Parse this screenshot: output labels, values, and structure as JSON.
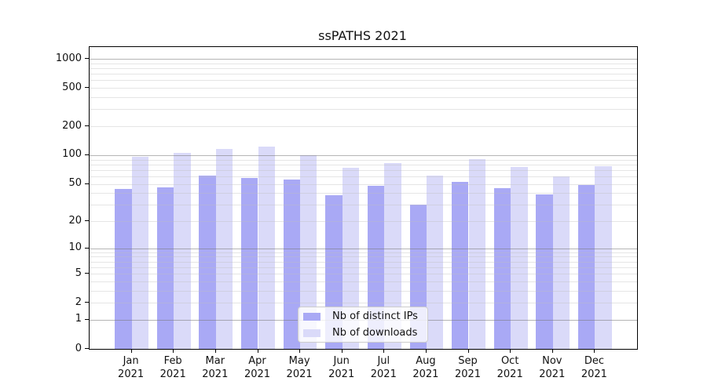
{
  "chart_data": {
    "type": "bar",
    "title": "ssPATHS 2021",
    "categories": [
      "Jan\n2021",
      "Feb\n2021",
      "Mar\n2021",
      "Apr\n2021",
      "May\n2021",
      "Jun\n2021",
      "Jul\n2021",
      "Aug\n2021",
      "Sep\n2021",
      "Oct\n2021",
      "Nov\n2021",
      "Dec\n2021"
    ],
    "series": [
      {
        "name": "Nb of distinct IPs",
        "color": "#a9a9f5",
        "values": [
          44,
          46,
          61,
          58,
          56,
          38,
          48,
          30,
          52,
          45,
          39,
          49
        ]
      },
      {
        "name": "Nb of downloads",
        "color": "#dadaf9",
        "values": [
          97,
          105,
          116,
          123,
          100,
          74,
          82,
          61,
          91,
          75,
          60,
          77
        ]
      }
    ],
    "xlabel": "",
    "ylabel": "",
    "y_axis": {
      "scale": "log1p",
      "tick_values": [
        0,
        1,
        2,
        5,
        10,
        20,
        50,
        100,
        200,
        500,
        1000
      ],
      "tick_labels": [
        "0",
        "1",
        "2",
        "5",
        "10",
        "20",
        "50",
        "100",
        "200",
        "500",
        "1000"
      ],
      "top_value": 1350
    },
    "grid": {
      "major_color": "#8c8c8c",
      "minor_color": "#dcdcdc"
    },
    "legend": {
      "position": "lower center"
    }
  }
}
